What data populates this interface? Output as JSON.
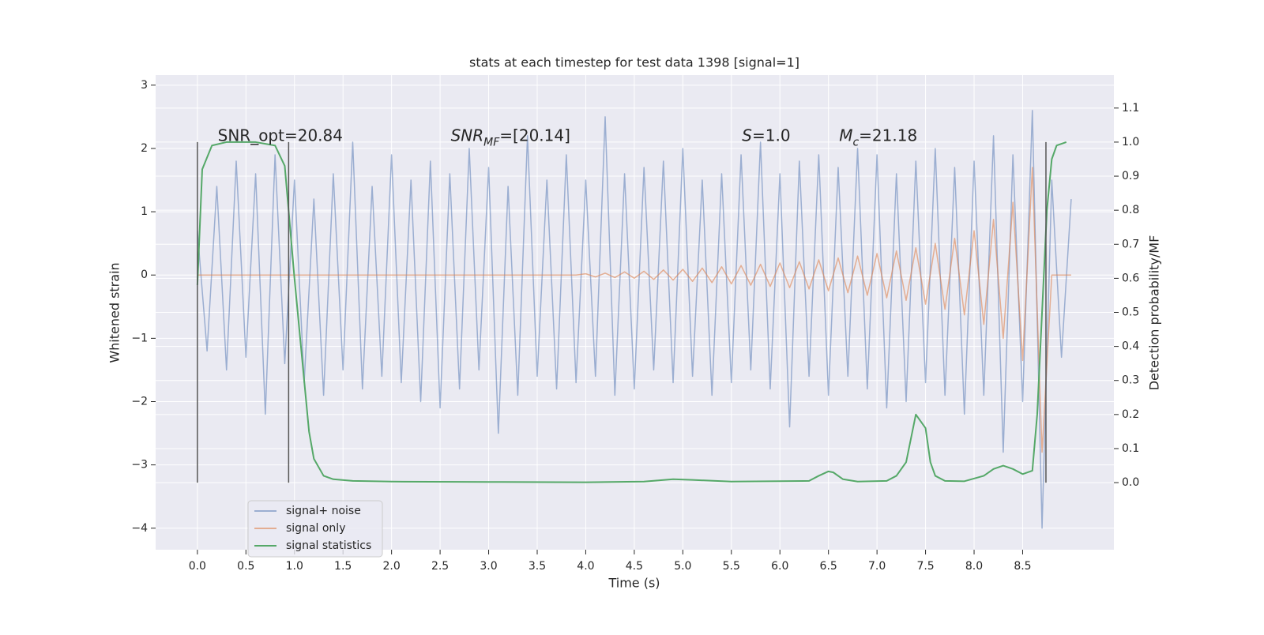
{
  "chart_data": {
    "type": "line",
    "title": "stats at each timestep for test data 1398 [signal=1]",
    "xlabel": "Time (s)",
    "ylabel": "Whitened strain",
    "y2label": "Detection probability/MF",
    "xlim": [
      -0.43,
      9.44
    ],
    "ylim": [
      -4.34,
      3.16
    ],
    "y2lim": [
      -0.197,
      1.197
    ],
    "xticks": [
      {
        "value": 0,
        "label": "0.0"
      },
      0.5,
      {
        "value": 1,
        "label": "1.0"
      },
      1.5,
      {
        "value": 2,
        "label": "2.0"
      },
      2.5,
      {
        "value": 3,
        "label": "3.0"
      },
      3.5,
      {
        "value": 4,
        "label": "4.0"
      },
      4.5,
      {
        "value": 5,
        "label": "5.0"
      },
      5.5,
      {
        "value": 6,
        "label": "6.0"
      },
      6.5,
      {
        "value": 7,
        "label": "7.0"
      },
      7.5,
      {
        "value": 8,
        "label": "8.0"
      },
      8.5
    ],
    "yticks": [
      3,
      2,
      1,
      0,
      {
        "value": -1,
        "label": "−1"
      },
      {
        "value": -2,
        "label": "−2"
      },
      {
        "value": -3,
        "label": "−3"
      },
      {
        "value": -4,
        "label": "−4"
      }
    ],
    "y2ticks": [
      {
        "value": 0,
        "label": "0.0"
      },
      0.1,
      0.2,
      0.3,
      0.4,
      0.5,
      0.6,
      0.7,
      0.8,
      0.9,
      {
        "value": 1,
        "label": "1.0"
      },
      1.1
    ],
    "grid": true,
    "x": [
      0,
      0.1,
      0.2,
      0.3,
      0.4,
      0.5,
      0.6,
      0.7,
      0.8,
      0.9,
      1,
      1.1,
      1.2,
      1.3,
      1.4,
      1.5,
      1.6,
      1.7,
      1.8,
      1.9,
      2,
      2.1,
      2.2,
      2.3,
      2.4,
      2.5,
      2.6,
      2.7,
      2.8,
      2.9,
      3,
      3.1,
      3.2,
      3.3,
      3.4,
      3.5,
      3.6,
      3.7,
      3.8,
      3.9,
      4,
      4.1,
      4.2,
      4.3,
      4.4,
      4.5,
      4.6,
      4.7,
      4.8,
      4.9,
      5,
      5.1,
      5.2,
      5.3,
      5.4,
      5.5,
      5.6,
      5.7,
      5.8,
      5.9,
      6,
      6.1,
      6.2,
      6.3,
      6.4,
      6.5,
      6.6,
      6.7,
      6.8,
      6.9,
      7,
      7.1,
      7.2,
      7.3,
      7.4,
      7.5,
      7.6,
      7.7,
      7.8,
      7.9,
      8,
      8.1,
      8.2,
      8.3,
      8.4,
      8.5,
      8.6,
      8.7,
      8.8,
      8.9,
      9
    ],
    "series": [
      {
        "name": "signal+ noise",
        "color": "#4c72b0",
        "alpha": 0.5,
        "values": [
          0.7,
          -1.2,
          1.4,
          -1.5,
          1.8,
          -1.3,
          1.6,
          -2.2,
          1.9,
          -1.4,
          1.5,
          -1.7,
          1.2,
          -1.9,
          1.6,
          -1.5,
          2.1,
          -1.8,
          1.4,
          -1.6,
          1.9,
          -1.7,
          1.5,
          -2.0,
          1.8,
          -2.1,
          1.6,
          -1.8,
          2.0,
          -1.5,
          1.7,
          -2.5,
          1.4,
          -1.9,
          2.2,
          -1.6,
          1.5,
          -1.8,
          1.9,
          -1.7,
          1.5,
          -1.6,
          2.5,
          -1.9,
          1.6,
          -1.8,
          1.7,
          -1.5,
          1.8,
          -1.7,
          2.0,
          -1.6,
          1.5,
          -1.9,
          1.6,
          -1.7,
          1.9,
          -1.5,
          2.1,
          -1.8,
          1.6,
          -2.4,
          1.8,
          -1.6,
          1.9,
          -1.9,
          1.7,
          -1.6,
          2.0,
          -1.8,
          1.9,
          -2.1,
          1.6,
          -2.0,
          1.8,
          -1.7,
          2.0,
          -1.9,
          1.7,
          -2.2,
          1.8,
          -1.9,
          2.2,
          -2.8,
          1.9,
          -2.0,
          2.6,
          -4.0,
          1.5,
          -1.3,
          1.2
        ]
      },
      {
        "name": "signal only",
        "color": "#dd8452",
        "alpha": 0.6,
        "values": [
          0,
          0,
          0,
          0,
          0,
          0,
          0,
          0,
          0,
          0,
          0,
          0,
          0,
          0,
          0,
          0,
          0,
          0,
          0,
          0,
          0,
          0,
          0,
          0,
          0,
          0,
          0,
          0,
          0,
          0,
          0,
          0,
          0,
          0,
          0,
          0,
          0,
          0,
          0,
          0,
          0.02,
          -0.03,
          0.03,
          -0.04,
          0.05,
          -0.05,
          0.06,
          -0.07,
          0.08,
          -0.08,
          0.09,
          -0.1,
          0.11,
          -0.12,
          0.13,
          -0.14,
          0.15,
          -0.16,
          0.17,
          -0.18,
          0.19,
          -0.2,
          0.21,
          -0.22,
          0.24,
          -0.25,
          0.27,
          -0.28,
          0.3,
          -0.32,
          0.34,
          -0.36,
          0.38,
          -0.4,
          0.43,
          -0.46,
          0.5,
          -0.54,
          0.58,
          -0.63,
          0.7,
          -0.78,
          0.88,
          -1.0,
          1.15,
          -1.35,
          1.7,
          -2.8,
          0,
          0,
          0
        ]
      },
      {
        "name": "signal statistics",
        "color": "#55a868",
        "alpha": 1,
        "axis": "y2",
        "x": [
          0,
          0.05,
          0.15,
          0.3,
          0.6,
          0.8,
          0.9,
          1.0,
          1.1,
          1.15,
          1.2,
          1.3,
          1.4,
          1.6,
          2,
          3,
          4,
          4.6,
          4.9,
          5.1,
          5.5,
          6.3,
          6.4,
          6.5,
          6.55,
          6.65,
          6.8,
          7.1,
          7.2,
          7.3,
          7.4,
          7.5,
          7.55,
          7.6,
          7.7,
          7.9,
          8.1,
          8.2,
          8.3,
          8.4,
          8.5,
          8.6,
          8.65,
          8.7,
          8.75,
          8.8,
          8.85,
          8.95
        ],
        "values": [
          0.58,
          0.92,
          0.99,
          1.0,
          1.0,
          0.99,
          0.93,
          0.6,
          0.3,
          0.15,
          0.07,
          0.02,
          0.01,
          0.005,
          0.003,
          0.002,
          0.001,
          0.003,
          0.01,
          0.008,
          0.003,
          0.005,
          0.02,
          0.033,
          0.03,
          0.01,
          0.003,
          0.005,
          0.02,
          0.06,
          0.2,
          0.16,
          0.06,
          0.02,
          0.005,
          0.004,
          0.02,
          0.04,
          0.05,
          0.04,
          0.025,
          0.035,
          0.2,
          0.5,
          0.8,
          0.95,
          0.99,
          1.0
        ]
      }
    ],
    "vlines": {
      "x": [
        0,
        0.94,
        8.74
      ],
      "ymin": 0,
      "ymax": 1,
      "color": "#555555",
      "axis": "y2"
    },
    "annotations": [
      {
        "x": 0.21,
        "y": 2.19,
        "parts": [
          {
            "text": "SNR_opt=20.84"
          }
        ]
      },
      {
        "x": 2.61,
        "y": 2.19,
        "parts": [
          {
            "text": "SNR",
            "italic": true
          },
          {
            "text": "MF",
            "italic": true,
            "sub": true
          },
          {
            "text": "=[20.14]"
          }
        ]
      },
      {
        "x": 5.61,
        "y": 2.19,
        "parts": [
          {
            "text": "S",
            "italic": true
          },
          {
            "text": "=1.0"
          }
        ]
      },
      {
        "x": 6.61,
        "y": 2.19,
        "parts": [
          {
            "text": "M",
            "italic": true
          },
          {
            "text": "c",
            "italic": true,
            "sub": true
          },
          {
            "text": "=21.18"
          }
        ]
      }
    ],
    "legend": "lower left"
  }
}
